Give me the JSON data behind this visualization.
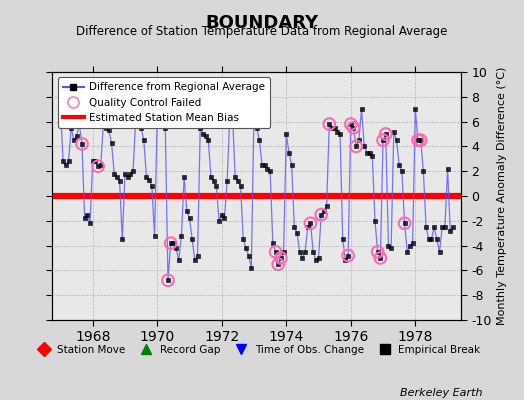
{
  "title": "BOUNDARY",
  "subtitle": "Difference of Station Temperature Data from Regional Average",
  "ylabel": "Monthly Temperature Anomaly Difference (°C)",
  "watermark": "Berkeley Earth",
  "ylim": [
    -10,
    10
  ],
  "xlim": [
    1966.75,
    1979.42
  ],
  "xticks": [
    1968,
    1970,
    1972,
    1974,
    1976,
    1978
  ],
  "yticks": [
    -10,
    -8,
    -6,
    -4,
    -2,
    0,
    2,
    4,
    6,
    8,
    10
  ],
  "bias_value": 0.0,
  "fig_bg_color": "#d8d8d8",
  "plot_bg_color": "#e8e8e8",
  "line_color": "#5555ff",
  "line_alpha": 0.8,
  "marker_color": "#000000",
  "qc_color": "#ff69b4",
  "bias_color": "#ff0000",
  "times": [
    1967.0,
    1967.083,
    1967.167,
    1967.25,
    1967.333,
    1967.417,
    1967.5,
    1967.583,
    1967.667,
    1967.75,
    1967.833,
    1967.917,
    1968.0,
    1968.083,
    1968.167,
    1968.25,
    1968.333,
    1968.417,
    1968.5,
    1968.583,
    1968.667,
    1968.75,
    1968.833,
    1968.917,
    1969.0,
    1969.083,
    1969.167,
    1969.25,
    1969.333,
    1969.417,
    1969.5,
    1969.583,
    1969.667,
    1969.75,
    1969.833,
    1969.917,
    1970.0,
    1970.083,
    1970.167,
    1970.25,
    1970.333,
    1970.417,
    1970.5,
    1970.583,
    1970.667,
    1970.75,
    1970.833,
    1970.917,
    1971.0,
    1971.083,
    1971.167,
    1971.25,
    1971.333,
    1971.417,
    1971.5,
    1971.583,
    1971.667,
    1971.75,
    1971.833,
    1971.917,
    1972.0,
    1972.083,
    1972.167,
    1972.25,
    1972.333,
    1972.417,
    1972.5,
    1972.583,
    1972.667,
    1972.75,
    1972.833,
    1972.917,
    1973.0,
    1973.083,
    1973.167,
    1973.25,
    1973.333,
    1973.417,
    1973.5,
    1973.583,
    1973.667,
    1973.75,
    1973.833,
    1973.917,
    1974.0,
    1974.083,
    1974.167,
    1974.25,
    1974.333,
    1974.417,
    1974.5,
    1974.583,
    1974.667,
    1974.75,
    1974.833,
    1974.917,
    1975.0,
    1975.083,
    1975.167,
    1975.25,
    1975.333,
    1975.417,
    1975.5,
    1975.583,
    1975.667,
    1975.75,
    1975.833,
    1975.917,
    1976.0,
    1976.083,
    1976.167,
    1976.25,
    1976.333,
    1976.417,
    1976.5,
    1976.583,
    1976.667,
    1976.75,
    1976.833,
    1976.917,
    1977.0,
    1977.083,
    1977.167,
    1977.25,
    1977.333,
    1977.417,
    1977.5,
    1977.583,
    1977.667,
    1977.75,
    1977.833,
    1977.917,
    1978.0,
    1978.083,
    1978.167,
    1978.25,
    1978.333,
    1978.417,
    1978.5,
    1978.583,
    1978.667,
    1978.75,
    1978.833,
    1978.917,
    1979.0,
    1979.083,
    1979.167
  ],
  "values": [
    7.0,
    2.8,
    2.5,
    2.8,
    5.5,
    4.5,
    4.8,
    5.8,
    4.2,
    -1.8,
    -1.5,
    -2.2,
    2.8,
    2.8,
    2.4,
    2.5,
    6.0,
    5.5,
    5.3,
    4.3,
    1.8,
    1.5,
    1.2,
    -3.5,
    1.8,
    1.5,
    1.8,
    2.0,
    6.2,
    5.8,
    5.5,
    4.5,
    1.5,
    1.3,
    0.8,
    -3.2,
    6.5,
    6.5,
    5.8,
    5.5,
    -6.8,
    -3.8,
    -3.8,
    -4.2,
    -5.2,
    -3.2,
    1.5,
    -1.2,
    -1.8,
    -3.5,
    -5.2,
    -4.8,
    5.5,
    5.0,
    4.8,
    4.5,
    1.5,
    1.2,
    0.8,
    -2.0,
    -1.5,
    -1.8,
    1.2,
    6.5,
    6.5,
    1.5,
    1.2,
    0.8,
    -3.5,
    -4.2,
    -4.8,
    -5.8,
    7.0,
    5.5,
    4.5,
    2.5,
    2.5,
    2.2,
    2.0,
    -3.8,
    -4.5,
    -5.5,
    -5.0,
    -4.5,
    5.0,
    3.5,
    2.5,
    -2.5,
    -3.0,
    -4.5,
    -5.0,
    -4.5,
    -2.5,
    -2.2,
    -4.5,
    -5.2,
    -5.0,
    -1.5,
    -1.2,
    -0.8,
    5.8,
    5.5,
    5.5,
    5.2,
    5.0,
    -3.5,
    -5.2,
    -4.8,
    5.8,
    5.5,
    4.0,
    4.5,
    7.0,
    4.0,
    3.5,
    3.5,
    3.2,
    -2.0,
    -4.5,
    -5.0,
    4.5,
    5.0,
    -4.0,
    -4.2,
    5.2,
    4.5,
    2.5,
    2.0,
    -2.2,
    -4.5,
    -4.0,
    -3.8,
    7.0,
    4.5,
    4.5,
    2.0,
    -2.5,
    -3.5,
    -3.5,
    -2.5,
    -3.5,
    -4.5,
    -2.5,
    -2.5,
    2.2,
    -2.8,
    -2.5
  ],
  "qc_failed_indices": [
    8,
    14,
    40,
    41,
    63,
    64,
    80,
    81,
    82,
    93,
    97,
    100,
    107,
    108,
    109,
    110,
    118,
    119,
    120,
    121,
    128,
    133,
    134
  ]
}
